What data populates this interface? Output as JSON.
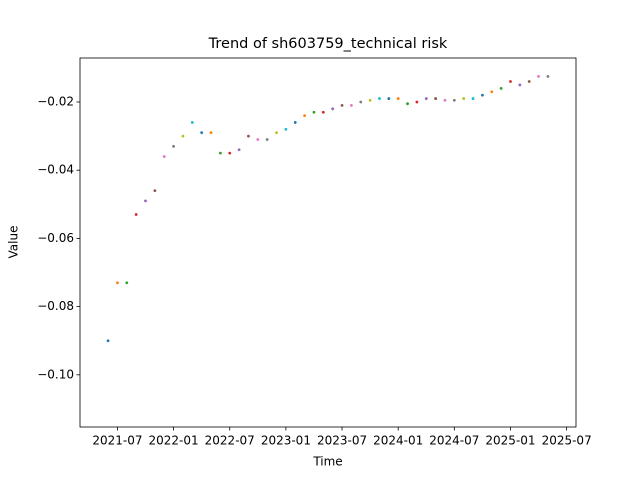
{
  "chart_data": {
    "type": "scatter",
    "title": "Trend of sh603759_technical risk",
    "x_label": "Time",
    "y_label": "Value",
    "x": [
      "2021-06",
      "2021-07",
      "2021-08",
      "2021-09",
      "2021-10",
      "2021-11",
      "2021-12",
      "2022-01",
      "2022-02",
      "2022-03",
      "2022-04",
      "2022-05",
      "2022-06",
      "2022-07",
      "2022-08",
      "2022-09",
      "2022-10",
      "2022-11",
      "2022-12",
      "2023-01",
      "2023-02",
      "2023-03",
      "2023-04",
      "2023-05",
      "2023-06",
      "2023-07",
      "2023-08",
      "2023-09",
      "2023-10",
      "2023-11",
      "2023-12",
      "2024-01",
      "2024-02",
      "2024-03",
      "2024-04",
      "2024-05",
      "2024-06",
      "2024-07",
      "2024-08",
      "2024-09",
      "2024-10",
      "2024-11",
      "2024-12",
      "2025-01",
      "2025-02",
      "2025-03",
      "2025-04",
      "2025-05"
    ],
    "values": [
      -0.09,
      -0.073,
      -0.073,
      -0.053,
      -0.049,
      -0.046,
      -0.036,
      -0.033,
      -0.03,
      -0.026,
      -0.029,
      -0.029,
      -0.035,
      -0.035,
      -0.034,
      -0.03,
      -0.031,
      -0.031,
      -0.029,
      -0.028,
      -0.026,
      -0.024,
      -0.023,
      -0.023,
      -0.022,
      -0.021,
      -0.021,
      -0.02,
      -0.0195,
      -0.019,
      -0.019,
      -0.019,
      -0.0205,
      -0.02,
      -0.019,
      -0.019,
      -0.0195,
      -0.0195,
      -0.019,
      -0.019,
      -0.018,
      -0.017,
      -0.016,
      -0.014,
      -0.015,
      -0.014,
      -0.0125,
      -0.0125
    ],
    "color_cycle": [
      "#1f77b4",
      "#ff7f0e",
      "#2ca02c",
      "#d62728",
      "#9467bd",
      "#8c564b",
      "#e377c2",
      "#7f7f7f",
      "#bcbd22",
      "#17becf"
    ],
    "xlim": [
      "2021-03",
      "2025-08"
    ],
    "xticks": [
      "2021-07",
      "2022-01",
      "2022-07",
      "2023-01",
      "2023-07",
      "2024-01",
      "2024-07",
      "2025-01",
      "2025-07"
    ],
    "ylim": [
      -0.1153,
      -0.0071
    ],
    "yticks": [
      {
        "value": -0.1,
        "label": "−0.10"
      },
      {
        "value": -0.08,
        "label": "−0.08"
      },
      {
        "value": -0.06,
        "label": "−0.06"
      },
      {
        "value": -0.04,
        "label": "−0.04"
      },
      {
        "value": -0.02,
        "label": "−0.02"
      }
    ]
  }
}
